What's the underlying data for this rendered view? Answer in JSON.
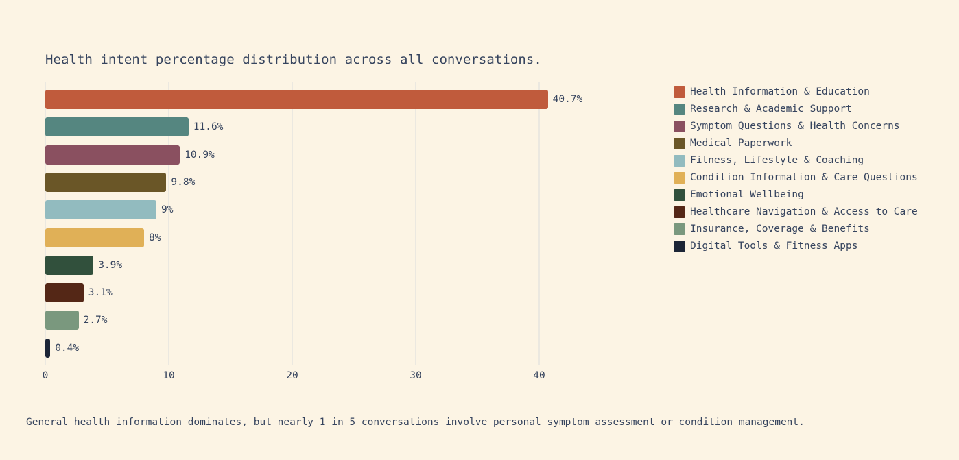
{
  "colors": {
    "background": "#FCF4E4",
    "text": "#36445E",
    "grid": "#EBE8E0"
  },
  "chart_data": {
    "type": "bar",
    "orientation": "horizontal",
    "title": "Health intent percentage distribution across all conversations.",
    "caption": "General health information dominates, but nearly 1 in 5 conversations involve personal symptom assessment or condition management.",
    "categories": [
      "Health Information & Education",
      "Research & Academic Support",
      "Symptom Questions & Health Concerns",
      "Medical Paperwork",
      "Fitness, Lifestyle & Coaching",
      "Condition Information & Care Questions",
      "Emotional Wellbeing",
      "Healthcare Navigation & Access to Care",
      "Insurance, Coverage & Benefits",
      "Digital Tools & Fitness Apps"
    ],
    "values": [
      40.7,
      11.6,
      10.9,
      9.8,
      9.0,
      8.0,
      3.9,
      3.1,
      2.7,
      0.4
    ],
    "value_labels": [
      "40.7%",
      "11.6%",
      "10.9%",
      "9.8%",
      "9%",
      "8%",
      "3.9%",
      "3.1%",
      "2.7%",
      "0.4%"
    ],
    "bar_colors": [
      "#C05B3C",
      "#558680",
      "#8A5060",
      "#6A5627",
      "#92BBBF",
      "#E0B057",
      "#31503C",
      "#542716",
      "#7A987E",
      "#1C2536"
    ],
    "xticks": [
      "0",
      "10",
      "20",
      "30",
      "40"
    ],
    "xtick_values": [
      0,
      10,
      20,
      30,
      40
    ],
    "xlim": [
      0,
      48.9
    ],
    "grid": true,
    "legend_position": "right"
  }
}
